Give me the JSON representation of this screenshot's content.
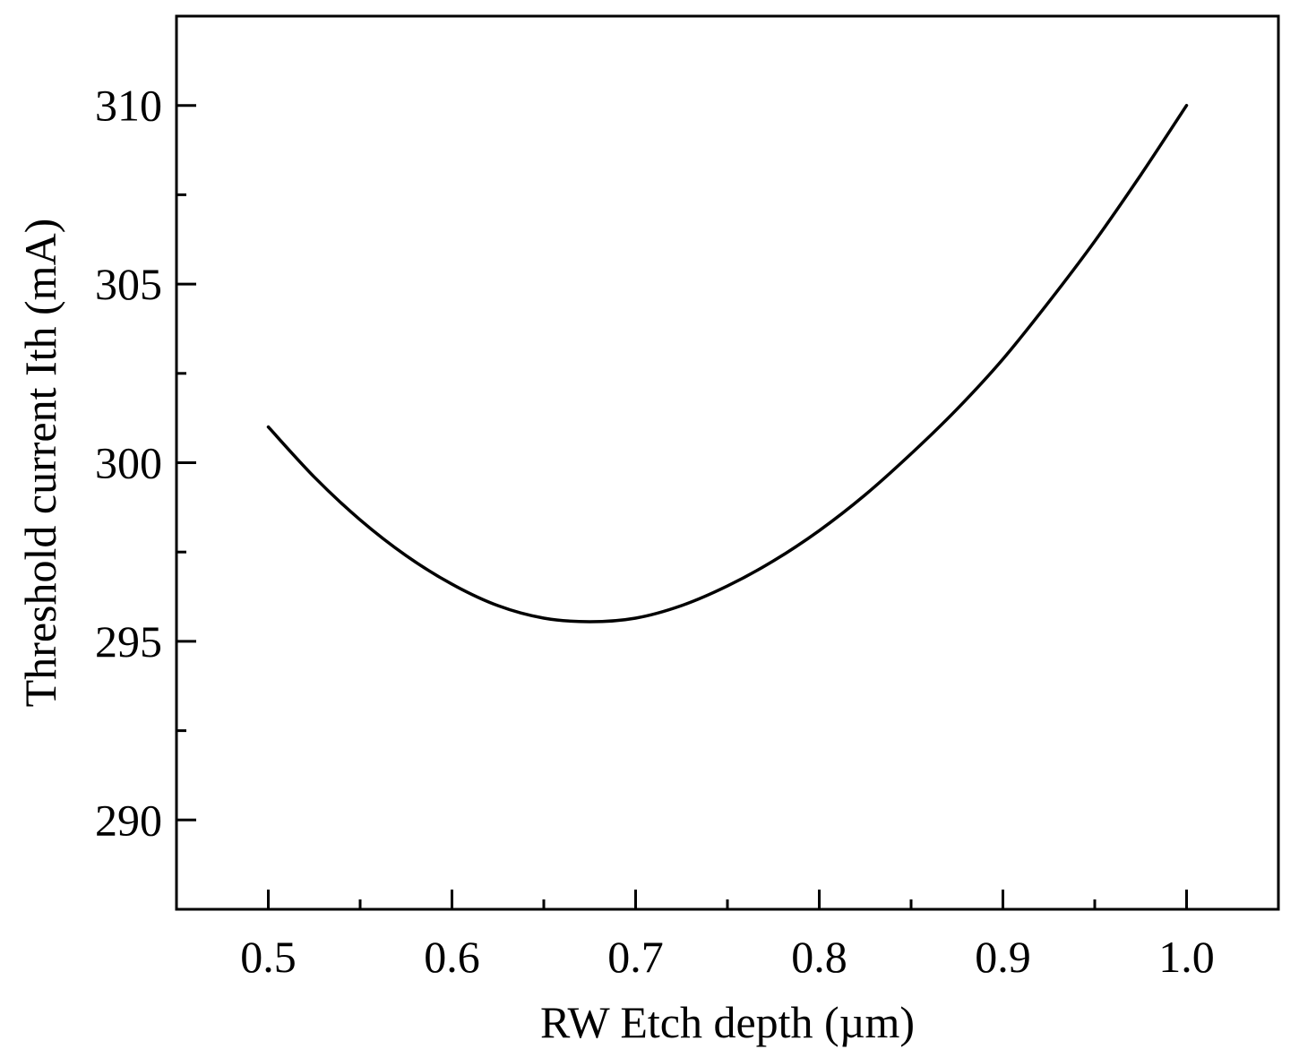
{
  "chart_data": {
    "type": "line",
    "title": "",
    "xlabel": "RW Etch depth (µm)",
    "ylabel": "Threshold current Ith (mA)",
    "xlim": [
      0.45,
      1.05
    ],
    "ylim": [
      287.5,
      312.5
    ],
    "x_ticks": [
      0.5,
      0.6,
      0.7,
      0.8,
      0.9,
      1.0
    ],
    "x_tick_labels": [
      "0.5",
      "0.6",
      "0.7",
      "0.8",
      "0.9",
      "1.0"
    ],
    "x_minor_ticks": [
      0.55,
      0.65,
      0.75,
      0.85,
      0.95
    ],
    "y_ticks": [
      290,
      295,
      300,
      305,
      310
    ],
    "y_tick_labels": [
      "290",
      "295",
      "300",
      "305",
      "310"
    ],
    "y_minor_ticks": [
      292.5,
      297.5,
      302.5,
      307.5
    ],
    "grid": false,
    "legend": "none",
    "series": [
      {
        "color": "#000000",
        "x": [
          0.5,
          0.525,
          0.55,
          0.575,
          0.6,
          0.625,
          0.65,
          0.675,
          0.7,
          0.725,
          0.75,
          0.775,
          0.8,
          0.825,
          0.85,
          0.875,
          0.9,
          0.925,
          0.95,
          0.975,
          1.0
        ],
        "y": [
          301.0,
          299.6,
          298.4,
          297.4,
          296.6,
          296.0,
          295.65,
          295.55,
          295.65,
          296.0,
          296.55,
          297.25,
          298.1,
          299.1,
          300.25,
          301.5,
          302.9,
          304.5,
          306.2,
          308.05,
          310.0
        ]
      }
    ]
  }
}
